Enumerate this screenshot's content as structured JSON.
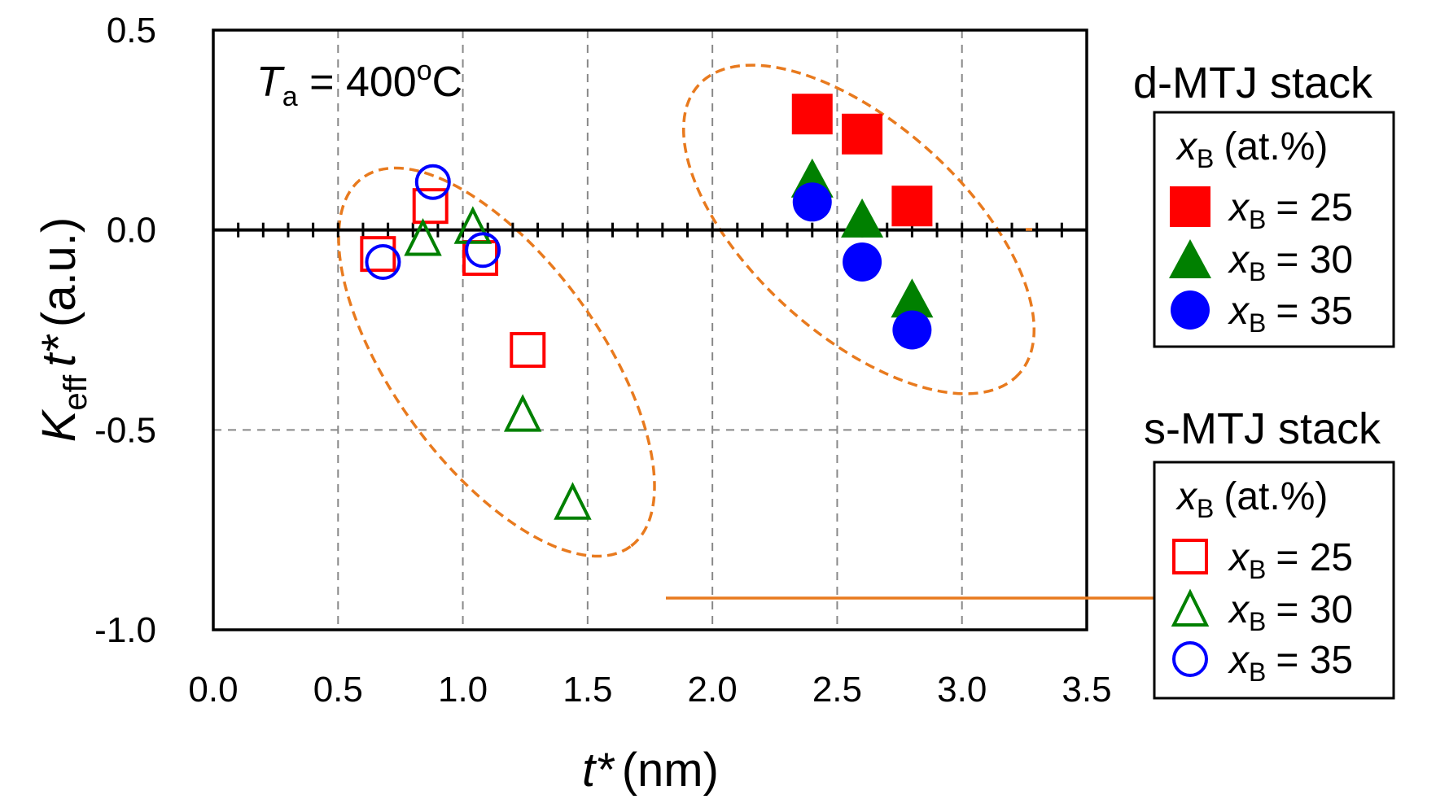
{
  "chart_data": {
    "type": "scatter",
    "annotation": {
      "symbol": "T",
      "sub": "a",
      "eq": " = 400",
      "sup": "o",
      "unit": "C"
    },
    "xlabel": {
      "symbol": "t*",
      "unit": "(nm)"
    },
    "ylabel": {
      "K": "K",
      "sub": "eff",
      "t": "t*",
      "unit": "(a.u.)"
    },
    "xlim": [
      0.0,
      3.5
    ],
    "ylim": [
      -1.0,
      0.5
    ],
    "xticks": [
      0.0,
      0.5,
      1.0,
      1.5,
      2.0,
      2.5,
      3.0,
      3.5
    ],
    "xtick_labels": [
      "0.0",
      "0.5",
      "1.0",
      "1.5",
      "2.0",
      "2.5",
      "3.0",
      "3.5"
    ],
    "yticks": [
      -1.0,
      -0.5,
      0.0,
      0.5
    ],
    "ytick_labels": [
      "-1.0",
      "-0.5",
      "0.0",
      "0.5"
    ],
    "grid": "dashed",
    "groups": [
      {
        "name": "d-MTJ stack",
        "filled": true
      },
      {
        "name": "s-MTJ stack",
        "filled": false
      }
    ],
    "legend_title": {
      "symbol": "x",
      "sub": "B",
      "unit": "(at.%)"
    },
    "series": [
      {
        "name": "d-MTJ x_B = 25",
        "group": "d-MTJ stack",
        "label": "= 25",
        "marker": "square",
        "filled": true,
        "color": "#ff0000",
        "points": [
          {
            "x": 2.4,
            "y": 0.29
          },
          {
            "x": 2.6,
            "y": 0.24
          },
          {
            "x": 2.8,
            "y": 0.06
          }
        ]
      },
      {
        "name": "d-MTJ x_B = 30",
        "group": "d-MTJ stack",
        "label": "= 30",
        "marker": "triangle",
        "filled": true,
        "color": "#008000",
        "points": [
          {
            "x": 2.4,
            "y": 0.13
          },
          {
            "x": 2.6,
            "y": 0.03
          },
          {
            "x": 2.8,
            "y": -0.17
          }
        ]
      },
      {
        "name": "d-MTJ x_B = 35",
        "group": "d-MTJ stack",
        "label": "= 35",
        "marker": "circle",
        "filled": true,
        "color": "#0000ff",
        "points": [
          {
            "x": 2.4,
            "y": 0.07
          },
          {
            "x": 2.6,
            "y": -0.08
          },
          {
            "x": 2.8,
            "y": -0.25
          }
        ]
      },
      {
        "name": "s-MTJ x_B = 25",
        "group": "s-MTJ stack",
        "label": "= 25",
        "marker": "square",
        "filled": false,
        "color": "#ff0000",
        "points": [
          {
            "x": 0.66,
            "y": -0.06
          },
          {
            "x": 0.87,
            "y": 0.06
          },
          {
            "x": 1.07,
            "y": -0.07
          },
          {
            "x": 1.26,
            "y": -0.3
          }
        ]
      },
      {
        "name": "s-MTJ x_B = 30",
        "group": "s-MTJ stack",
        "label": "= 30",
        "marker": "triangle",
        "filled": false,
        "color": "#008000",
        "points": [
          {
            "x": 0.84,
            "y": -0.02
          },
          {
            "x": 1.04,
            "y": 0.01
          },
          {
            "x": 1.24,
            "y": -0.46
          },
          {
            "x": 1.44,
            "y": -0.68
          }
        ]
      },
      {
        "name": "s-MTJ x_B = 35",
        "group": "s-MTJ stack",
        "label": "= 35",
        "marker": "circle",
        "filled": false,
        "color": "#0000ff",
        "points": [
          {
            "x": 0.68,
            "y": -0.08
          },
          {
            "x": 0.88,
            "y": 0.12
          },
          {
            "x": 1.08,
            "y": -0.05
          }
        ]
      }
    ],
    "ellipse_color": "#e87a1e"
  }
}
